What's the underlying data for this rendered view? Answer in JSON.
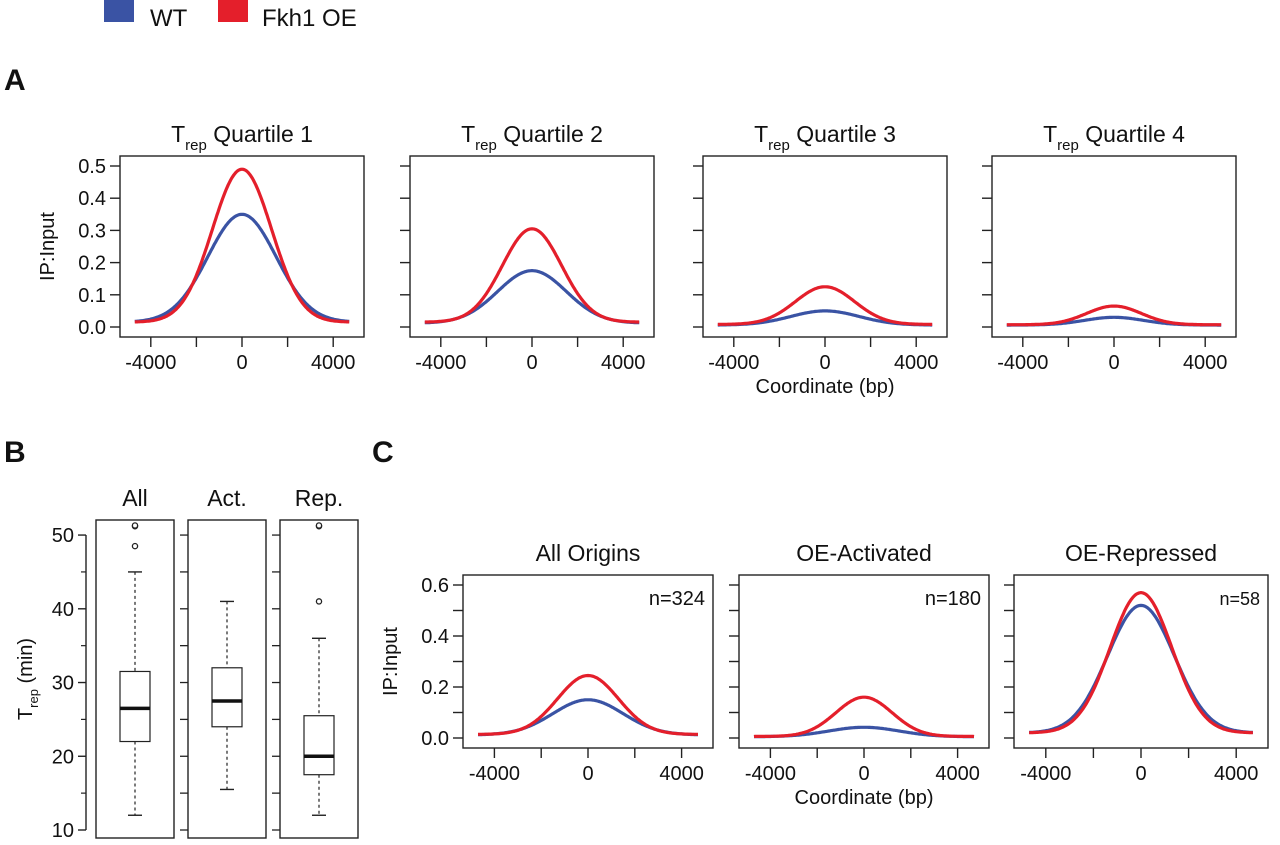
{
  "legend": {
    "items": [
      {
        "label": "WT",
        "color": "#3a53a4"
      },
      {
        "label": "Fkh1 OE",
        "color": "#e41f2b"
      }
    ]
  },
  "panels": {
    "A": {
      "letter": "A"
    },
    "B": {
      "letter": "B"
    },
    "C": {
      "letter": "C"
    }
  },
  "chart_data": [
    {
      "type": "line",
      "panel": "A",
      "title": "Quartile 1",
      "title_prefix": "T",
      "title_subscript": "rep",
      "ylabel": "IP:Input",
      "xlabel": "",
      "xlim": [
        -5000,
        5000
      ],
      "ylim": [
        0,
        0.5
      ],
      "xticks": [
        -4000,
        0,
        4000
      ],
      "yticks": [
        0.0,
        0.1,
        0.2,
        0.3,
        0.4,
        0.5
      ],
      "ytick_labels": [
        "0.0",
        "0.1",
        "0.2",
        "0.3",
        "0.4",
        "0.5"
      ],
      "series": [
        {
          "name": "WT",
          "color": "#3a53a4",
          "peak": 0.35,
          "base": 0.015,
          "width": 1500
        },
        {
          "name": "Fkh1 OE",
          "color": "#e41f2b",
          "peak": 0.49,
          "base": 0.015,
          "width": 1300
        }
      ]
    },
    {
      "type": "line",
      "panel": "A",
      "title": "Quartile 2",
      "title_prefix": "T",
      "title_subscript": "rep",
      "ylabel": "",
      "xlabel": "",
      "xlim": [
        -5000,
        5000
      ],
      "ylim": [
        0,
        0.5
      ],
      "xticks": [
        -4000,
        0,
        4000
      ],
      "yticks": [
        0.0,
        0.1,
        0.2,
        0.3,
        0.4,
        0.5
      ],
      "ytick_labels": [],
      "series": [
        {
          "name": "WT",
          "color": "#3a53a4",
          "peak": 0.175,
          "base": 0.012,
          "width": 1500
        },
        {
          "name": "Fkh1 OE",
          "color": "#e41f2b",
          "peak": 0.305,
          "base": 0.015,
          "width": 1300
        }
      ]
    },
    {
      "type": "line",
      "panel": "A",
      "title": "Quartile 3",
      "title_prefix": "T",
      "title_subscript": "rep",
      "ylabel": "",
      "xlabel": "Coordinate (bp)",
      "xlim": [
        -5000,
        5000
      ],
      "ylim": [
        0,
        0.5
      ],
      "xticks": [
        -4000,
        0,
        4000
      ],
      "yticks": [
        0.0,
        0.1,
        0.2,
        0.3,
        0.4,
        0.5
      ],
      "ytick_labels": [],
      "series": [
        {
          "name": "WT",
          "color": "#3a53a4",
          "peak": 0.05,
          "base": 0.006,
          "width": 1500
        },
        {
          "name": "Fkh1 OE",
          "color": "#e41f2b",
          "peak": 0.125,
          "base": 0.008,
          "width": 1300
        }
      ]
    },
    {
      "type": "line",
      "panel": "A",
      "title": "Quartile 4",
      "title_prefix": "T",
      "title_subscript": "rep",
      "ylabel": "",
      "xlabel": "",
      "xlim": [
        -5000,
        5000
      ],
      "ylim": [
        0,
        0.5
      ],
      "xticks": [
        -4000,
        0,
        4000
      ],
      "yticks": [
        0.0,
        0.1,
        0.2,
        0.3,
        0.4,
        0.5
      ],
      "ytick_labels": [],
      "series": [
        {
          "name": "WT",
          "color": "#3a53a4",
          "peak": 0.03,
          "base": 0.006,
          "width": 1300
        },
        {
          "name": "Fkh1 OE",
          "color": "#e41f2b",
          "peak": 0.065,
          "base": 0.007,
          "width": 1200
        }
      ]
    },
    {
      "type": "box",
      "panel": "B",
      "title": "All",
      "ylabel_prefix": "T",
      "ylabel_subscript": "rep",
      "ylabel_suffix": "(min)",
      "ylim": [
        10,
        51
      ],
      "yticks": [
        10,
        20,
        30,
        40,
        50
      ],
      "q1": 22,
      "median": 26.5,
      "q3": 31.5,
      "whisker_low": 12,
      "whisker_high": 45,
      "outliers": [
        48.5,
        51.2,
        51.3
      ]
    },
    {
      "type": "box",
      "panel": "B",
      "title": "Act.",
      "ylim": [
        10,
        51
      ],
      "q1": 24,
      "median": 27.5,
      "q3": 32,
      "whisker_low": 15.5,
      "whisker_high": 41,
      "outliers": []
    },
    {
      "type": "box",
      "panel": "B",
      "title": "Rep.",
      "ylim": [
        10,
        51
      ],
      "q1": 17.5,
      "median": 20,
      "q3": 25.5,
      "whisker_low": 12,
      "whisker_high": 36,
      "outliers": [
        41,
        51.2,
        51.3
      ]
    },
    {
      "type": "line",
      "panel": "C",
      "title": "All Origins",
      "annotation": "n=324",
      "ylabel": "IP:Input",
      "xlabel": "",
      "xlim": [
        -5000,
        5000
      ],
      "ylim": [
        0,
        0.6
      ],
      "xticks": [
        -4000,
        0,
        4000
      ],
      "yticks": [
        0.0,
        0.2,
        0.4,
        0.6
      ],
      "minor_yticks": [
        0.1,
        0.3,
        0.5
      ],
      "ytick_labels": [
        "0.0",
        "0.2",
        "0.4",
        "0.6"
      ],
      "series": [
        {
          "name": "WT",
          "color": "#3a53a4",
          "peak": 0.15,
          "base": 0.012,
          "width": 1500
        },
        {
          "name": "Fkh1 OE",
          "color": "#e41f2b",
          "peak": 0.245,
          "base": 0.014,
          "width": 1300
        }
      ]
    },
    {
      "type": "line",
      "panel": "C",
      "title": "OE-Activated",
      "annotation": "n=180",
      "ylabel": "",
      "xlabel": "Coordinate (bp)",
      "xlim": [
        -5000,
        5000
      ],
      "ylim": [
        0,
        0.6
      ],
      "xticks": [
        -4000,
        0,
        4000
      ],
      "yticks": [
        0.0,
        0.1,
        0.2,
        0.3,
        0.4,
        0.5,
        0.6
      ],
      "ytick_labels": [],
      "series": [
        {
          "name": "WT",
          "color": "#3a53a4",
          "peak": 0.042,
          "base": 0.005,
          "width": 1500
        },
        {
          "name": "Fkh1 OE",
          "color": "#e41f2b",
          "peak": 0.16,
          "base": 0.006,
          "width": 1200
        }
      ]
    },
    {
      "type": "line",
      "panel": "C",
      "title": "OE-Repressed",
      "annotation": "n=58",
      "ylabel": "",
      "xlabel": "",
      "xlim": [
        -5000,
        5000
      ],
      "ylim": [
        0,
        0.6
      ],
      "xticks": [
        -4000,
        0,
        4000
      ],
      "yticks": [
        0.0,
        0.1,
        0.2,
        0.3,
        0.4,
        0.5,
        0.6
      ],
      "ytick_labels": [],
      "series": [
        {
          "name": "WT",
          "color": "#3a53a4",
          "peak": 0.52,
          "base": 0.02,
          "width": 1400
        },
        {
          "name": "Fkh1 OE",
          "color": "#e41f2b",
          "peak": 0.57,
          "base": 0.02,
          "width": 1300
        }
      ]
    }
  ]
}
